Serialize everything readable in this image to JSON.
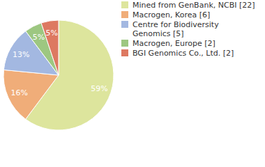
{
  "chart_data": {
    "type": "pie",
    "categories": [
      "Mined from GenBank, NCBI [22]",
      "Macrogen, Korea [6]",
      "Centre for Biodiversity Genomics [5]",
      "Macrogen, Europe [2]",
      "BGI Genomics Co., Ltd. [2]"
    ],
    "values": [
      59,
      16,
      13,
      5,
      5
    ],
    "value_labels": [
      "59%",
      "16%",
      "13%",
      "5%",
      "5%"
    ],
    "colors": [
      "#dde59d",
      "#f0ad79",
      "#a3b8e1",
      "#9dc781",
      "#dd7961"
    ],
    "data_labels": true,
    "legend": "right"
  }
}
